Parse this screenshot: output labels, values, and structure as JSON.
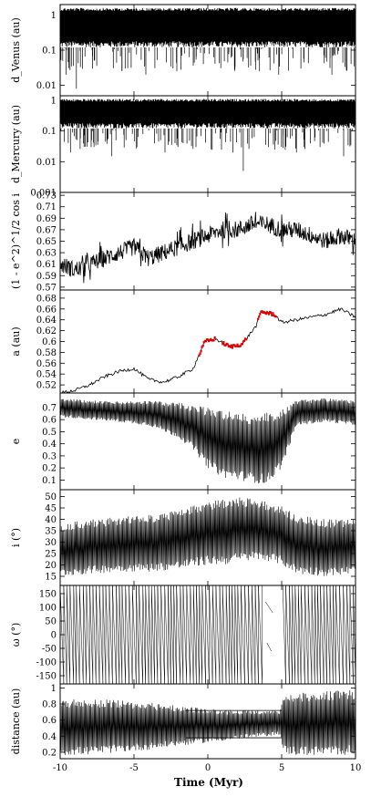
{
  "figure": {
    "xlabel": "Time (Myr)",
    "xlim": [
      -10,
      10
    ],
    "xticks": [
      "-10",
      "-5",
      "0",
      "5",
      "10"
    ]
  },
  "chart_data": [
    {
      "id": "dvenus",
      "type": "line",
      "ylabel": "d_Venus (au)",
      "ylabel_text": "d",
      "ylabel_sub": "Venus",
      "ylabel_unit": " (au)",
      "scale": "log",
      "ylim": [
        0.005,
        2
      ],
      "yticks": [
        {
          "value": 1,
          "label": "1"
        },
        {
          "value": 0.1,
          "label": "0.1"
        },
        {
          "value": 0.01,
          "label": "0.01"
        }
      ],
      "band": [
        0.12,
        1.6
      ],
      "dips": [
        {
          "x": -9.6,
          "y": 0.02
        },
        {
          "x": -8.9,
          "y": 0.008
        },
        {
          "x": -7.8,
          "y": 0.03
        },
        {
          "x": -5.6,
          "y": 0.03
        },
        {
          "x": -4.2,
          "y": 0.02
        },
        {
          "x": -2.1,
          "y": 0.025
        },
        {
          "x": -0.3,
          "y": 0.04
        },
        {
          "x": 3.5,
          "y": 0.025
        },
        {
          "x": 4.8,
          "y": 0.02
        },
        {
          "x": 6.3,
          "y": 0.03
        },
        {
          "x": 8.4,
          "y": 0.02
        },
        {
          "x": 9.7,
          "y": 0.04
        }
      ]
    },
    {
      "id": "dmercury",
      "type": "line",
      "ylabel": "d_Mercury (au)",
      "ylabel_text": "d",
      "ylabel_sub": "Mercury",
      "ylabel_unit": " (au)",
      "scale": "log",
      "ylim": [
        0.001,
        1.4
      ],
      "yticks": [
        {
          "value": 1,
          "label": "1"
        },
        {
          "value": 0.1,
          "label": "0.1"
        },
        {
          "value": 0.01,
          "label": "0.01"
        },
        {
          "value": 0.001,
          "label": "0.001"
        }
      ],
      "band": [
        0.12,
        1.1
      ],
      "dips": [
        {
          "x": -9.3,
          "y": 0.02
        },
        {
          "x": -7.9,
          "y": 0.03
        },
        {
          "x": -6.5,
          "y": 0.015
        },
        {
          "x": -4.8,
          "y": 0.03
        },
        {
          "x": -2.9,
          "y": 0.02
        },
        {
          "x": -0.8,
          "y": 0.03
        },
        {
          "x": 1.7,
          "y": 0.02
        },
        {
          "x": 2.4,
          "y": 0.005
        },
        {
          "x": 4.1,
          "y": 0.03
        },
        {
          "x": 6.0,
          "y": 0.02
        },
        {
          "x": 7.6,
          "y": 0.03
        },
        {
          "x": 9.2,
          "y": 0.015
        }
      ]
    },
    {
      "id": "tisserand",
      "type": "line",
      "ylabel": "(1 - e^2)^1/2 cos i",
      "scale": "linear",
      "ylim": [
        0.565,
        0.735
      ],
      "yticks": [
        {
          "value": 0.73,
          "label": "0.73"
        },
        {
          "value": 0.71,
          "label": "0.71"
        },
        {
          "value": 0.69,
          "label": "0.69"
        },
        {
          "value": 0.67,
          "label": "0.67"
        },
        {
          "value": 0.65,
          "label": "0.65"
        },
        {
          "value": 0.63,
          "label": "0.63"
        },
        {
          "value": 0.61,
          "label": "0.61"
        },
        {
          "value": 0.59,
          "label": "0.59"
        },
        {
          "value": 0.57,
          "label": "0.57"
        }
      ],
      "x": [
        -10,
        -9,
        -8,
        -7,
        -6,
        -5,
        -4,
        -3,
        -2,
        -1,
        0,
        1,
        2,
        3,
        4,
        5,
        6,
        7,
        8,
        9,
        10
      ],
      "y": [
        0.61,
        0.6,
        0.61,
        0.62,
        0.63,
        0.64,
        0.62,
        0.63,
        0.64,
        0.65,
        0.66,
        0.67,
        0.67,
        0.68,
        0.68,
        0.67,
        0.67,
        0.66,
        0.65,
        0.66,
        0.65
      ],
      "noise": 0.03
    },
    {
      "id": "semimajor",
      "type": "line",
      "ylabel": "a (au)",
      "scale": "linear",
      "ylim": [
        0.505,
        0.695
      ],
      "yticks": [
        {
          "value": 0.68,
          "label": "0.68"
        },
        {
          "value": 0.66,
          "label": "0.66"
        },
        {
          "value": 0.64,
          "label": "0.64"
        },
        {
          "value": 0.62,
          "label": "0.62"
        },
        {
          "value": 0.6,
          "label": "0.6"
        },
        {
          "value": 0.58,
          "label": "0.58"
        },
        {
          "value": 0.56,
          "label": "0.56"
        },
        {
          "value": 0.54,
          "label": "0.54"
        },
        {
          "value": 0.52,
          "label": "0.52"
        }
      ],
      "x": [
        -10,
        -9,
        -8,
        -7,
        -6,
        -5,
        -4,
        -3,
        -2,
        -1,
        -0.2,
        0.5,
        1.5,
        2.3,
        2.6,
        3.3,
        3.6,
        4.5,
        5,
        6,
        7,
        8,
        9,
        10
      ],
      "y": [
        0.505,
        0.51,
        0.52,
        0.535,
        0.545,
        0.55,
        0.53,
        0.525,
        0.535,
        0.55,
        0.6,
        0.605,
        0.59,
        0.595,
        0.605,
        0.63,
        0.655,
        0.65,
        0.635,
        0.64,
        0.645,
        0.65,
        0.66,
        0.645
      ],
      "highlight_color": "#e00000",
      "highlight_ranges": [
        [
          -0.6,
          0.5
        ],
        [
          1.0,
          2.6
        ],
        [
          3.4,
          4.6
        ]
      ]
    },
    {
      "id": "eccentricity",
      "type": "line",
      "ylabel": "e",
      "scale": "linear",
      "ylim": [
        0.02,
        0.82
      ],
      "yticks": [
        {
          "value": 0.7,
          "label": "0.7"
        },
        {
          "value": 0.6,
          "label": "0.6"
        },
        {
          "value": 0.5,
          "label": "0.5"
        },
        {
          "value": 0.4,
          "label": "0.4"
        },
        {
          "value": 0.3,
          "label": "0.3"
        },
        {
          "value": 0.2,
          "label": "0.2"
        },
        {
          "value": 0.1,
          "label": "0.1"
        }
      ],
      "x": [
        -10,
        -8,
        -6,
        -4,
        -2,
        -1,
        0,
        1,
        2,
        3,
        4,
        5,
        6,
        8,
        10
      ],
      "upper": [
        0.78,
        0.76,
        0.75,
        0.76,
        0.74,
        0.72,
        0.7,
        0.68,
        0.66,
        0.64,
        0.66,
        0.68,
        0.76,
        0.78,
        0.76
      ],
      "lower": [
        0.62,
        0.6,
        0.58,
        0.55,
        0.45,
        0.35,
        0.2,
        0.12,
        0.1,
        0.08,
        0.06,
        0.2,
        0.55,
        0.58,
        0.55
      ]
    },
    {
      "id": "inclination",
      "type": "line",
      "ylabel": "i (°)",
      "scale": "linear",
      "ylim": [
        11,
        53
      ],
      "yticks": [
        {
          "value": 50,
          "label": "50"
        },
        {
          "value": 45,
          "label": "45"
        },
        {
          "value": 40,
          "label": "40"
        },
        {
          "value": 35,
          "label": "35"
        },
        {
          "value": 30,
          "label": "30"
        },
        {
          "value": 25,
          "label": "25"
        },
        {
          "value": 20,
          "label": "20"
        },
        {
          "value": 15,
          "label": "15"
        }
      ],
      "x": [
        -10,
        -8,
        -6,
        -4,
        -2,
        -1,
        0,
        1,
        2,
        3,
        4,
        5,
        6,
        8,
        10
      ],
      "upper": [
        38,
        40,
        41,
        42,
        44,
        46,
        48,
        49,
        50,
        49,
        48,
        46,
        42,
        40,
        40
      ],
      "lower": [
        15,
        16,
        17,
        17,
        18,
        19,
        20,
        20,
        21,
        22,
        22,
        20,
        16,
        15,
        16
      ]
    },
    {
      "id": "omega",
      "type": "line",
      "ylabel": "ω (°)",
      "scale": "linear",
      "ylim": [
        -180,
        180
      ],
      "yticks": [
        {
          "value": 150,
          "label": "150"
        },
        {
          "value": 100,
          "label": "100"
        },
        {
          "value": 50,
          "label": "50"
        },
        {
          "value": 0,
          "label": "0"
        },
        {
          "value": -50,
          "label": "-50"
        },
        {
          "value": -100,
          "label": "-100"
        },
        {
          "value": -150,
          "label": "-150"
        }
      ],
      "circulation_gap": [
        3.6,
        4.9
      ]
    },
    {
      "id": "distance",
      "type": "line",
      "ylabel": "distance (au)",
      "scale": "linear",
      "ylim": [
        0.12,
        1.05
      ],
      "yticks": [
        {
          "value": 1,
          "label": "1"
        },
        {
          "value": 0.8,
          "label": "0.8"
        },
        {
          "value": 0.6,
          "label": "0.6"
        },
        {
          "value": 0.4,
          "label": "0.4"
        },
        {
          "value": 0.2,
          "label": "0.2"
        }
      ],
      "x": [
        -10,
        -8,
        -6,
        -4,
        -2,
        0,
        2,
        4,
        4.9,
        5.1,
        6,
        8,
        10
      ],
      "upper": [
        0.86,
        0.86,
        0.85,
        0.82,
        0.78,
        0.74,
        0.72,
        0.72,
        0.72,
        0.92,
        0.94,
        0.96,
        0.98
      ],
      "lower": [
        0.16,
        0.17,
        0.2,
        0.23,
        0.28,
        0.32,
        0.36,
        0.4,
        0.42,
        0.18,
        0.16,
        0.16,
        0.17
      ],
      "guide_lines": [
        0.72,
        0.38
      ]
    }
  ]
}
